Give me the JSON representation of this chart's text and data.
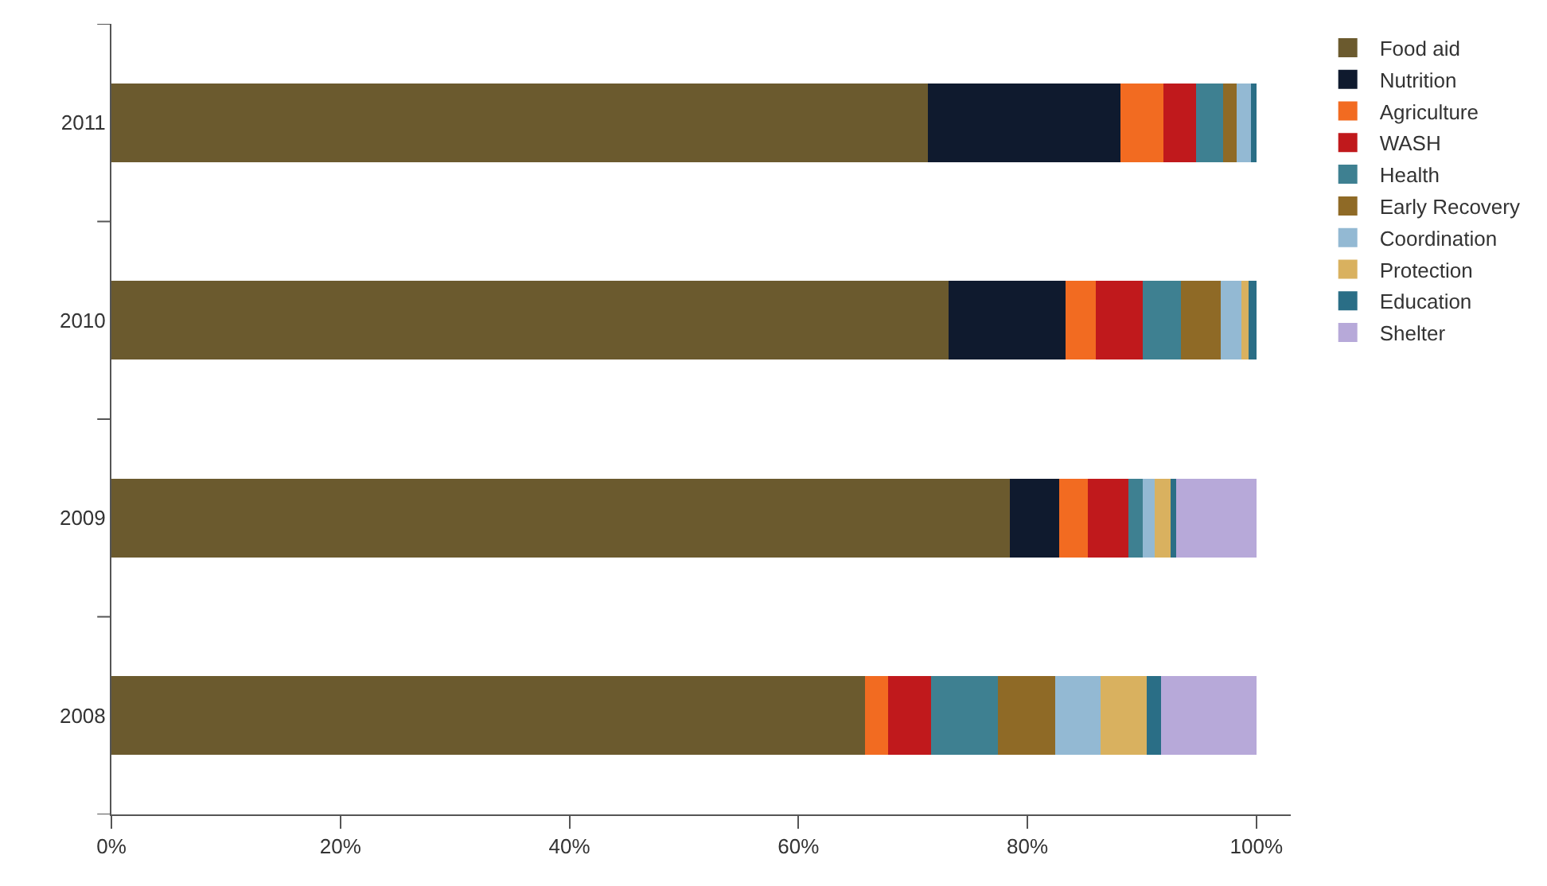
{
  "chart_data": {
    "type": "bar",
    "orientation": "horizontal",
    "stacked": true,
    "categories": [
      "2011",
      "2010",
      "2009",
      "2008"
    ],
    "series": [
      {
        "name": "Food aid",
        "color": "#6b5a2e",
        "values": [
          71.3,
          73.1,
          78.5,
          65.8
        ]
      },
      {
        "name": "Nutrition",
        "color": "#0f1a2e",
        "values": [
          16.8,
          10.2,
          4.3,
          0
        ]
      },
      {
        "name": "Agriculture",
        "color": "#f26b21",
        "values": [
          3.8,
          2.7,
          2.5,
          2.0
        ]
      },
      {
        "name": "WASH",
        "color": "#c0191c",
        "values": [
          2.8,
          4.1,
          3.5,
          3.8
        ]
      },
      {
        "name": "Health",
        "color": "#3e8091",
        "values": [
          2.4,
          3.3,
          1.3,
          5.8
        ]
      },
      {
        "name": "Early Recovery",
        "color": "#8f6a26",
        "values": [
          1.2,
          3.5,
          0,
          5.0
        ]
      },
      {
        "name": "Coordination",
        "color": "#93b9d3",
        "values": [
          1.2,
          1.8,
          1.0,
          4.0
        ]
      },
      {
        "name": "Protection",
        "color": "#d9b15f",
        "values": [
          0,
          0.6,
          1.4,
          4.0
        ]
      },
      {
        "name": "Education",
        "color": "#2a6e86",
        "values": [
          0.5,
          0.7,
          0.5,
          1.3
        ]
      },
      {
        "name": "Shelter",
        "color": "#b7a9d9",
        "values": [
          0,
          0,
          7.0,
          8.3
        ]
      }
    ],
    "xlim": [
      0,
      103
    ],
    "xticks": [
      {
        "value": 0,
        "label": "0%"
      },
      {
        "value": 20,
        "label": "20%"
      },
      {
        "value": 40,
        "label": "40%"
      },
      {
        "value": 60,
        "label": "60%"
      },
      {
        "value": 80,
        "label": "80%"
      },
      {
        "value": 100,
        "label": "100%"
      }
    ],
    "grid": false,
    "legend": "right"
  }
}
